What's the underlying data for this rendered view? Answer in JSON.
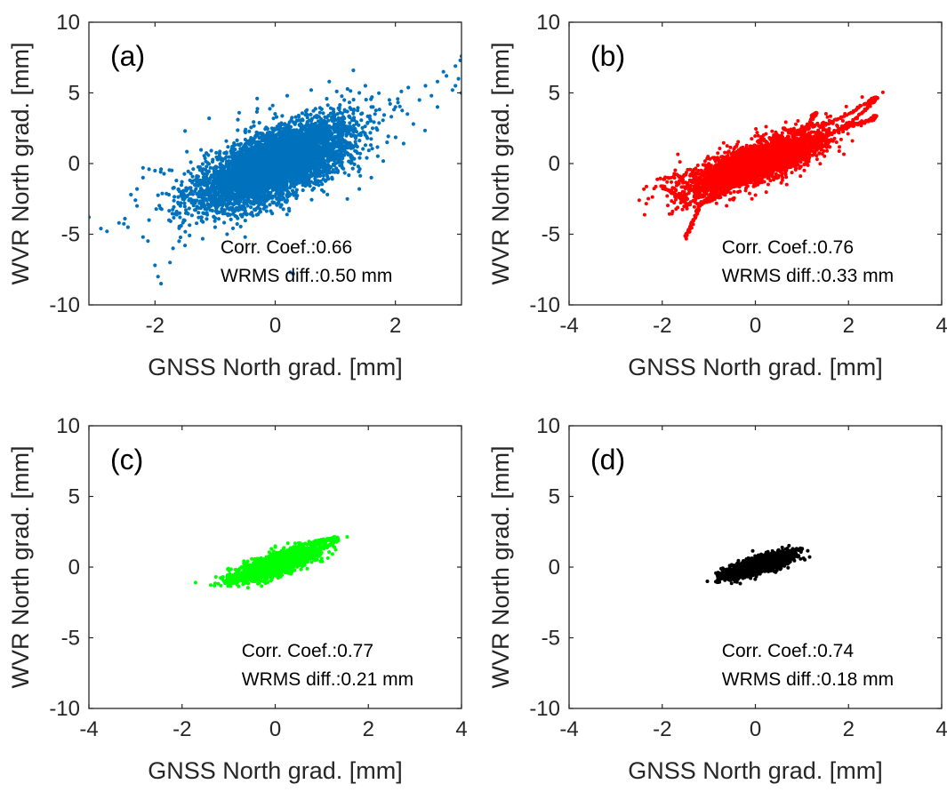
{
  "chart_data": [
    {
      "type": "scatter",
      "panel_label": "(a)",
      "xlabel": "GNSS North grad. [mm]",
      "ylabel": "WVR North grad. [mm]",
      "xlim": [
        -3.1,
        3.1
      ],
      "ylim": [
        -10,
        10
      ],
      "xticks": [
        -2,
        0,
        2
      ],
      "yticks": [
        -10,
        -5,
        0,
        5,
        10
      ],
      "annotations": [
        "Corr. Coef.:0.66",
        "WRMS diff.:0.50 mm"
      ],
      "color": "#0072BD",
      "series": [
        {
          "cloud": {
            "n": 5200,
            "sx": 0.65,
            "sy": 1.55,
            "rho": 0.66,
            "xc": 0.0,
            "yc": 0.0
          },
          "outliers": [
            [
              -3.1,
              -3.8
            ],
            [
              -2.9,
              -4.6
            ],
            [
              -2.8,
              -4.8
            ],
            [
              -2.6,
              -4.2
            ],
            [
              -2.5,
              -3.9
            ],
            [
              -2.45,
              -4.5
            ],
            [
              -2.3,
              -3.0
            ],
            [
              -2.2,
              -5.2
            ],
            [
              -2.1,
              -4.0
            ],
            [
              -2.0,
              -7.2
            ],
            [
              -1.95,
              -8.0
            ],
            [
              -1.9,
              -8.5
            ],
            [
              -1.75,
              -7.0
            ],
            [
              -1.7,
              -6.0
            ],
            [
              -2.4,
              -2.2
            ],
            [
              -2.3,
              -1.8
            ],
            [
              -2.2,
              -0.3
            ],
            [
              -2.1,
              -0.4
            ],
            [
              -2.0,
              -0.5
            ],
            [
              -2.2,
              -1.0
            ],
            [
              -1.9,
              -0.4
            ],
            [
              -1.6,
              -5.5
            ],
            [
              -1.5,
              -5.8
            ],
            [
              0.3,
              -7.8
            ],
            [
              0.25,
              -7.7
            ],
            [
              1.3,
              6.6
            ],
            [
              1.5,
              5.5
            ],
            [
              1.6,
              4.0
            ],
            [
              1.9,
              4.5
            ],
            [
              2.0,
              4.0
            ],
            [
              2.1,
              5.1
            ],
            [
              2.4,
              4.5
            ],
            [
              2.6,
              4.8
            ],
            [
              2.7,
              5.8
            ],
            [
              2.8,
              6.5
            ],
            [
              3.0,
              6.9
            ],
            [
              3.08,
              7.3
            ],
            [
              3.1,
              7.6
            ],
            [
              3.05,
              6.0
            ],
            [
              2.95,
              5.2
            ],
            [
              3.0,
              5.5
            ],
            [
              2.85,
              6.2
            ],
            [
              2.5,
              5.5
            ],
            [
              2.2,
              3.5
            ],
            [
              2.3,
              2.8
            ],
            [
              2.7,
              4.0
            ],
            [
              3.1,
              5.0
            ],
            [
              1.4,
              5.0
            ],
            [
              0.9,
              5.8
            ],
            [
              0.6,
              5.2
            ],
            [
              0.2,
              4.8
            ],
            [
              -0.3,
              4.6
            ],
            [
              -0.6,
              3.6
            ],
            [
              -1.1,
              3.2
            ],
            [
              -1.5,
              2.3
            ],
            [
              1.2,
              -2.5
            ],
            [
              1.4,
              -1.8
            ],
            [
              1.6,
              -1.0
            ],
            [
              -1.0,
              -4.5
            ],
            [
              -1.2,
              -3.5
            ],
            [
              -0.8,
              -5.0
            ],
            [
              -0.5,
              -5.2
            ],
            [
              -1.3,
              -3.1
            ]
          ]
        }
      ]
    },
    {
      "type": "scatter",
      "panel_label": "(b)",
      "xlabel": "GNSS North grad. [mm]",
      "ylabel": "WVR North grad. [mm]",
      "xlim": [
        -4,
        4
      ],
      "ylim": [
        -10,
        10
      ],
      "xticks": [
        -4,
        -2,
        0,
        2,
        4
      ],
      "yticks": [
        -10,
        -5,
        0,
        5,
        10
      ],
      "annotations": [
        "Corr. Coef.:0.76",
        "WRMS diff.:0.33 mm"
      ],
      "color": "#FF0000",
      "series": [
        {
          "cloud": {
            "n": 3400,
            "sx": 0.7,
            "sy": 1.05,
            "rho": 0.76,
            "xc": 0.0,
            "yc": 0.0
          },
          "tracks": [
            [
              [
                -2.1,
                -1.1
              ],
              [
                -1.6,
                -0.9
              ],
              [
                -1.0,
                -0.6
              ],
              [
                -0.4,
                -0.2
              ],
              [
                0.2,
                0.3
              ],
              [
                0.8,
                0.9
              ],
              [
                1.4,
                1.6
              ],
              [
                1.9,
                2.6
              ],
              [
                2.3,
                3.6
              ],
              [
                2.5,
                4.3
              ],
              [
                2.6,
                4.7
              ],
              [
                2.5,
                4.5
              ],
              [
                2.2,
                3.9
              ],
              [
                1.8,
                3.2
              ],
              [
                1.4,
                2.6
              ]
            ],
            [
              [
                1.2,
                1.8
              ],
              [
                1.8,
                2.4
              ],
              [
                2.2,
                2.8
              ],
              [
                2.5,
                3.1
              ],
              [
                2.6,
                3.4
              ],
              [
                2.4,
                3.0
              ],
              [
                1.9,
                2.6
              ]
            ],
            [
              [
                -1.5,
                -5.3
              ],
              [
                -1.4,
                -4.6
              ],
              [
                -1.3,
                -3.8
              ],
              [
                -1.2,
                -3.0
              ],
              [
                -1.0,
                -2.4
              ],
              [
                -0.8,
                -1.8
              ],
              [
                -0.6,
                -1.4
              ]
            ],
            [
              [
                -2.0,
                -1.6
              ],
              [
                -1.8,
                -2.0
              ],
              [
                -1.6,
                -2.5
              ],
              [
                -1.4,
                -3.0
              ]
            ],
            [
              [
                1.0,
                2.0
              ],
              [
                1.2,
                3.0
              ],
              [
                1.3,
                3.6
              ],
              [
                1.2,
                3.3
              ]
            ],
            [
              [
                -1.0,
                -2.7
              ],
              [
                -0.7,
                -2.0
              ],
              [
                -0.4,
                -1.5
              ]
            ],
            [
              [
                0.6,
                2.5
              ],
              [
                0.9,
                2.2
              ],
              [
                1.2,
                2.8
              ]
            ]
          ]
        }
      ]
    },
    {
      "type": "scatter",
      "panel_label": "(c)",
      "xlabel": "GNSS North grad. [mm]",
      "ylabel": "WVR North grad. [mm]",
      "xlim": [
        -4,
        4
      ],
      "ylim": [
        -10,
        10
      ],
      "xticks": [
        -4,
        -2,
        0,
        2,
        4
      ],
      "yticks": [
        -10,
        -5,
        0,
        5,
        10
      ],
      "annotations": [
        "Corr. Coef.:0.77",
        "WRMS diff.:0.21 mm"
      ],
      "color": "#00FF00",
      "series": [
        {
          "cloud": {
            "n": 1800,
            "sx": 0.42,
            "sy": 0.55,
            "rho": 0.77,
            "xc": 0.0,
            "yc": 0.15
          },
          "tracks": [
            [
              [
                -1.1,
                -1.0
              ],
              [
                -0.8,
                -0.7
              ],
              [
                -0.4,
                -0.3
              ],
              [
                0.0,
                0.2
              ],
              [
                0.4,
                0.8
              ],
              [
                0.8,
                1.4
              ],
              [
                1.1,
                1.9
              ],
              [
                1.3,
                2.1
              ],
              [
                1.35,
                1.9
              ],
              [
                1.1,
                1.5
              ],
              [
                0.7,
                0.9
              ],
              [
                0.3,
                0.6
              ],
              [
                0.0,
                0.8
              ],
              [
                0.2,
                1.1
              ],
              [
                0.6,
                1.6
              ],
              [
                1.0,
                1.9
              ],
              [
                1.25,
                2.0
              ]
            ],
            [
              [
                -1.1,
                -1.1
              ],
              [
                -0.8,
                -1.0
              ],
              [
                -0.5,
                -0.8
              ]
            ]
          ]
        }
      ]
    },
    {
      "type": "scatter",
      "panel_label": "(d)",
      "xlabel": "GNSS North grad. [mm]",
      "ylabel": "WVR North grad. [mm]",
      "xlim": [
        -4,
        4
      ],
      "ylim": [
        -10,
        10
      ],
      "xticks": [
        -4,
        -2,
        0,
        2,
        4
      ],
      "yticks": [
        -10,
        -5,
        0,
        5,
        10
      ],
      "annotations": [
        "Corr. Coef.:0.74",
        "WRMS diff.:0.18 mm"
      ],
      "color": "#000000",
      "series": [
        {
          "cloud": {
            "n": 1700,
            "sx": 0.34,
            "sy": 0.42,
            "rho": 0.74,
            "xc": 0.1,
            "yc": 0.15
          },
          "tracks": [
            [
              [
                -0.8,
                -0.9
              ],
              [
                -0.7,
                -0.6
              ],
              [
                -0.5,
                -0.3
              ],
              [
                -0.2,
                0.0
              ],
              [
                0.2,
                0.4
              ],
              [
                0.6,
                0.9
              ],
              [
                0.9,
                1.2
              ],
              [
                1.0,
                1.3
              ]
            ],
            [
              [
                -0.75,
                -0.5
              ],
              [
                -0.6,
                -0.8
              ],
              [
                -0.4,
                -1.0
              ]
            ]
          ]
        }
      ]
    }
  ]
}
